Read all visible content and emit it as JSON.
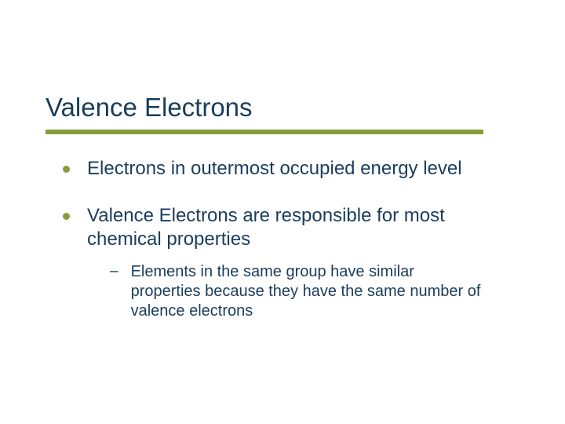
{
  "colors": {
    "title": "#1a3d5c",
    "body": "#1a3d5c",
    "bullet": "#869c3a",
    "underline": "#869c3a",
    "background": "#ffffff"
  },
  "fonts": {
    "title_size": 33,
    "body_size": 24,
    "sub_size": 20
  },
  "title": "Valence Electrons",
  "bullets": [
    {
      "text": "Electrons in outermost occupied energy level",
      "subs": []
    },
    {
      "text": "Valence Electrons are responsible for most chemical properties",
      "subs": [
        "Elements in the same group have similar properties because they have the same number of valence electrons"
      ]
    }
  ]
}
